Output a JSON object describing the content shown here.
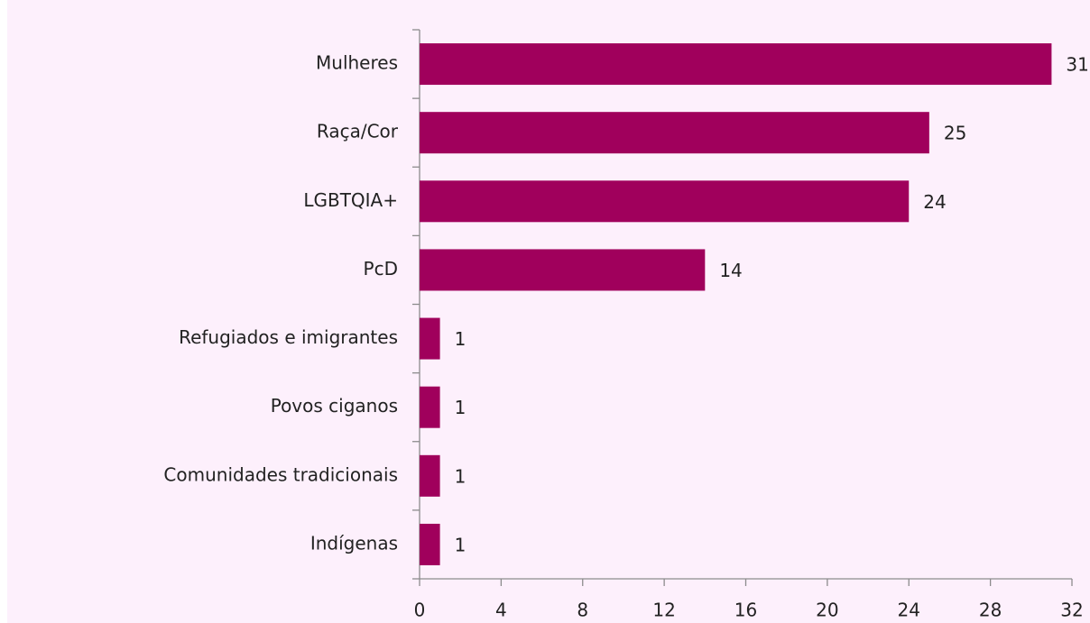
{
  "chart_data": {
    "type": "bar",
    "orientation": "horizontal",
    "categories": [
      "Mulheres",
      "Raça/Cor",
      "LGBTQIA+",
      "PcD",
      "Refugiados e imigrantes",
      "Povos ciganos",
      "Comunidades tradicionais",
      "Indígenas"
    ],
    "values": [
      31,
      25,
      24,
      14,
      1,
      1,
      1,
      1
    ],
    "color": "#a0005c",
    "xlim": [
      0,
      32
    ],
    "xticks": [
      0,
      4,
      8,
      12,
      16,
      20,
      24,
      28,
      32
    ],
    "grid": false
  }
}
